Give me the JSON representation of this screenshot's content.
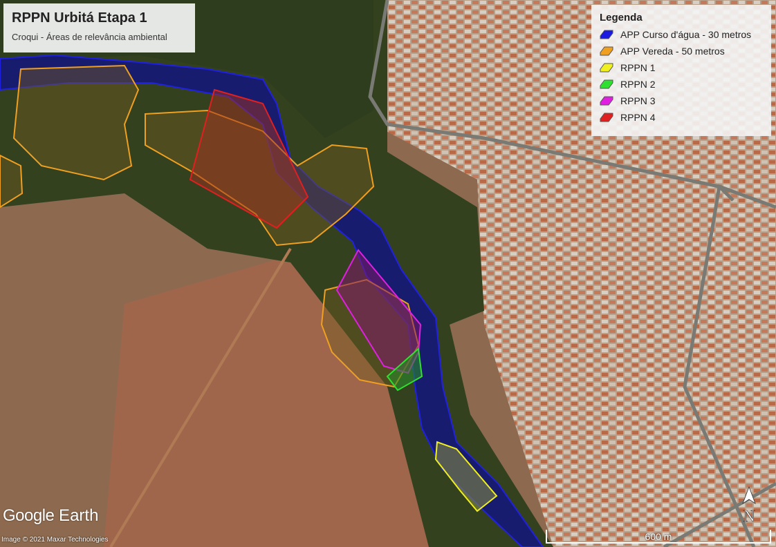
{
  "header": {
    "title": "RPPN Urbitá Etapa 1",
    "subtitle": "Croqui - Áreas de relevância ambiental"
  },
  "legend": {
    "title": "Legenda",
    "items": [
      {
        "label": "APP Curso d'água - 30 metros",
        "color": "#1a1ae0"
      },
      {
        "label": "APP Vereda - 50 metros",
        "color": "#f0a020"
      },
      {
        "label": "RPPN 1",
        "color": "#f0f020"
      },
      {
        "label": "RPPN 2",
        "color": "#30e030"
      },
      {
        "label": "RPPN 3",
        "color": "#e020e0"
      },
      {
        "label": "RPPN 4",
        "color": "#e02020"
      }
    ]
  },
  "branding": {
    "logo": "Google Earth",
    "credit": "Image © 2021 Maxar Technologies"
  },
  "scale_bar": {
    "label": "600 m"
  },
  "compass": {
    "label": "N",
    "icon": "north-arrow-icon"
  }
}
